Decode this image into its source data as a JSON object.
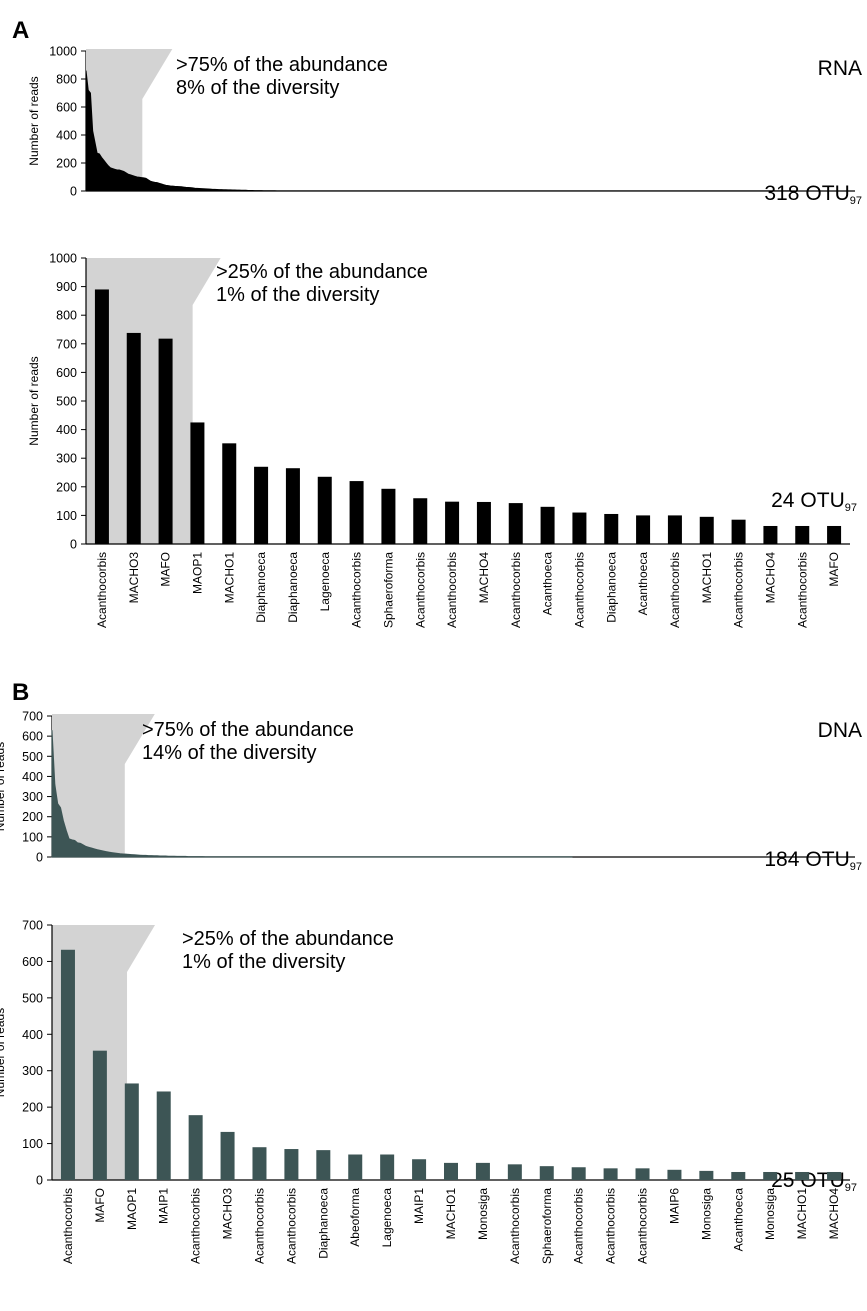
{
  "panels": [
    {
      "letter": "A",
      "tag": "RNA",
      "otu_number": "318",
      "otu_prefix": "OTU",
      "otu_sub": "97"
    },
    {
      "letter": "B",
      "tag": "DNA",
      "otu_number": "184",
      "otu_prefix": "OTU",
      "otu_sub": "97"
    }
  ],
  "colors": {
    "rna_bars": "#000000",
    "dna_bars": "#3d5555",
    "shade": "#d3d3d3",
    "axis": "#000000"
  },
  "chart_data": [
    {
      "type": "area",
      "panel": "A",
      "ylabel": "Number of reads",
      "ylim": [
        0,
        1000
      ],
      "yticks": [
        0,
        200,
        400,
        600,
        800,
        1000
      ],
      "annotation": [
        ">75% of the abundance",
        "8% of the diversity"
      ],
      "highlight_fraction": 0.08,
      "n_otus": 318,
      "values": [
        860,
        720,
        700,
        430,
        350,
        270,
        265,
        240,
        220,
        200,
        180,
        165,
        160,
        155,
        150,
        150,
        145,
        140,
        130,
        120,
        115,
        110,
        105,
        100,
        98,
        96,
        94,
        90,
        80,
        70,
        65,
        62,
        60,
        55,
        50,
        45,
        40,
        38,
        36,
        35,
        33,
        32,
        31,
        30,
        28,
        26,
        25,
        24,
        22,
        20,
        19,
        18,
        17,
        16,
        15,
        14,
        13,
        12,
        12,
        11,
        10,
        10,
        9,
        9,
        8,
        8,
        7,
        7,
        6,
        6,
        5,
        5,
        5,
        4,
        4,
        4,
        3,
        3,
        3,
        3,
        2,
        2,
        2,
        2,
        2,
        2,
        1,
        1,
        1,
        1,
        1,
        1,
        1,
        1,
        1,
        1,
        1,
        1,
        1,
        1,
        1,
        1,
        1,
        1,
        1,
        1,
        1,
        1,
        1,
        1,
        1,
        1,
        1,
        1,
        1,
        1,
        1,
        1,
        1,
        1
      ]
    },
    {
      "type": "bar",
      "panel": "A",
      "ylabel": "Number of reads",
      "ylim": [
        0,
        1000
      ],
      "yticks": [
        0,
        100,
        200,
        300,
        400,
        500,
        600,
        700,
        800,
        900,
        1000
      ],
      "annotation": [
        ">25% of the abundance",
        "1% of the diversity"
      ],
      "highlight_count": 3,
      "categories": [
        "Acanthocorbis",
        "MACHO3",
        "MAFO",
        "MAOP1",
        "MACHO1",
        "Diaphanoeca",
        "Diaphanoeca",
        "Lagenoeca",
        "Acanthocorbis",
        "Sphaeroforma",
        "Acanthocorbis",
        "Acanthocorbis",
        "MACHO4",
        "Acanthocorbis",
        "Acanthoeca",
        "Acanthocorbis",
        "Diaphanoeca",
        "Acanthoeca",
        "Acanthocorbis",
        "MACHO1",
        "Acanthocorbis",
        "MACHO4",
        "Acanthocorbis",
        "MAFO"
      ],
      "values": [
        890,
        738,
        718,
        425,
        352,
        270,
        265,
        235,
        220,
        193,
        160,
        148,
        147,
        143,
        130,
        110,
        105,
        100,
        100,
        95,
        85,
        63,
        63,
        63
      ]
    },
    {
      "type": "area",
      "panel": "B",
      "ylabel": "Number of reads",
      "ylim": [
        0,
        700
      ],
      "yticks": [
        0,
        100,
        200,
        300,
        400,
        500,
        600,
        700
      ],
      "annotation": [
        ">75% of the abundance",
        "14% of the diversity"
      ],
      "highlight_fraction": 0.14,
      "n_otus": 184,
      "values": [
        630,
        360,
        265,
        245,
        180,
        132,
        90,
        85,
        82,
        70,
        68,
        60,
        52,
        48,
        44,
        40,
        36,
        33,
        30,
        27,
        24,
        22,
        20,
        18,
        16,
        15,
        14,
        13,
        12,
        11,
        10,
        9,
        8,
        8,
        7,
        7,
        6,
        6,
        5,
        5,
        5,
        4,
        4,
        4,
        3,
        3,
        3,
        3,
        2,
        2,
        2,
        2,
        2,
        2,
        1,
        1,
        1,
        1,
        1,
        1,
        1,
        1,
        1,
        1,
        1,
        1,
        1,
        1,
        1,
        1,
        1,
        1,
        1,
        1,
        1,
        1,
        1,
        1,
        1,
        1
      ]
    },
    {
      "type": "bar",
      "panel": "B",
      "ylabel": "Number of reads",
      "ylim": [
        0,
        700
      ],
      "yticks": [
        0,
        100,
        200,
        300,
        400,
        500,
        600,
        700
      ],
      "annotation": [
        ">25% of the abundance",
        "1% of the diversity"
      ],
      "highlight_count": 2,
      "categories": [
        "Acanthocorbis",
        "MAFO",
        "MAOP1",
        "MAIP1",
        "Acanthocorbis",
        "MACHO3",
        "Acanthocorbis",
        "Acanthocorbis",
        "Diaphanoeca",
        "Abeoforma",
        "Lagenoeca",
        "MAIP1",
        "MACHO1",
        "Monosiga",
        "Acanthocorbis",
        "Sphaeroforma",
        "Acanthocorbis",
        "Acanthocorbis",
        "Acanthocorbis",
        "MAIP6",
        "Monosiga",
        "Acanthoeca",
        "Monosiga",
        "MACHO1",
        "MACHO4"
      ],
      "values": [
        632,
        355,
        265,
        243,
        178,
        132,
        90,
        85,
        82,
        70,
        70,
        57,
        47,
        47,
        43,
        38,
        35,
        32,
        32,
        28,
        25,
        22,
        22,
        22,
        22
      ]
    }
  ]
}
